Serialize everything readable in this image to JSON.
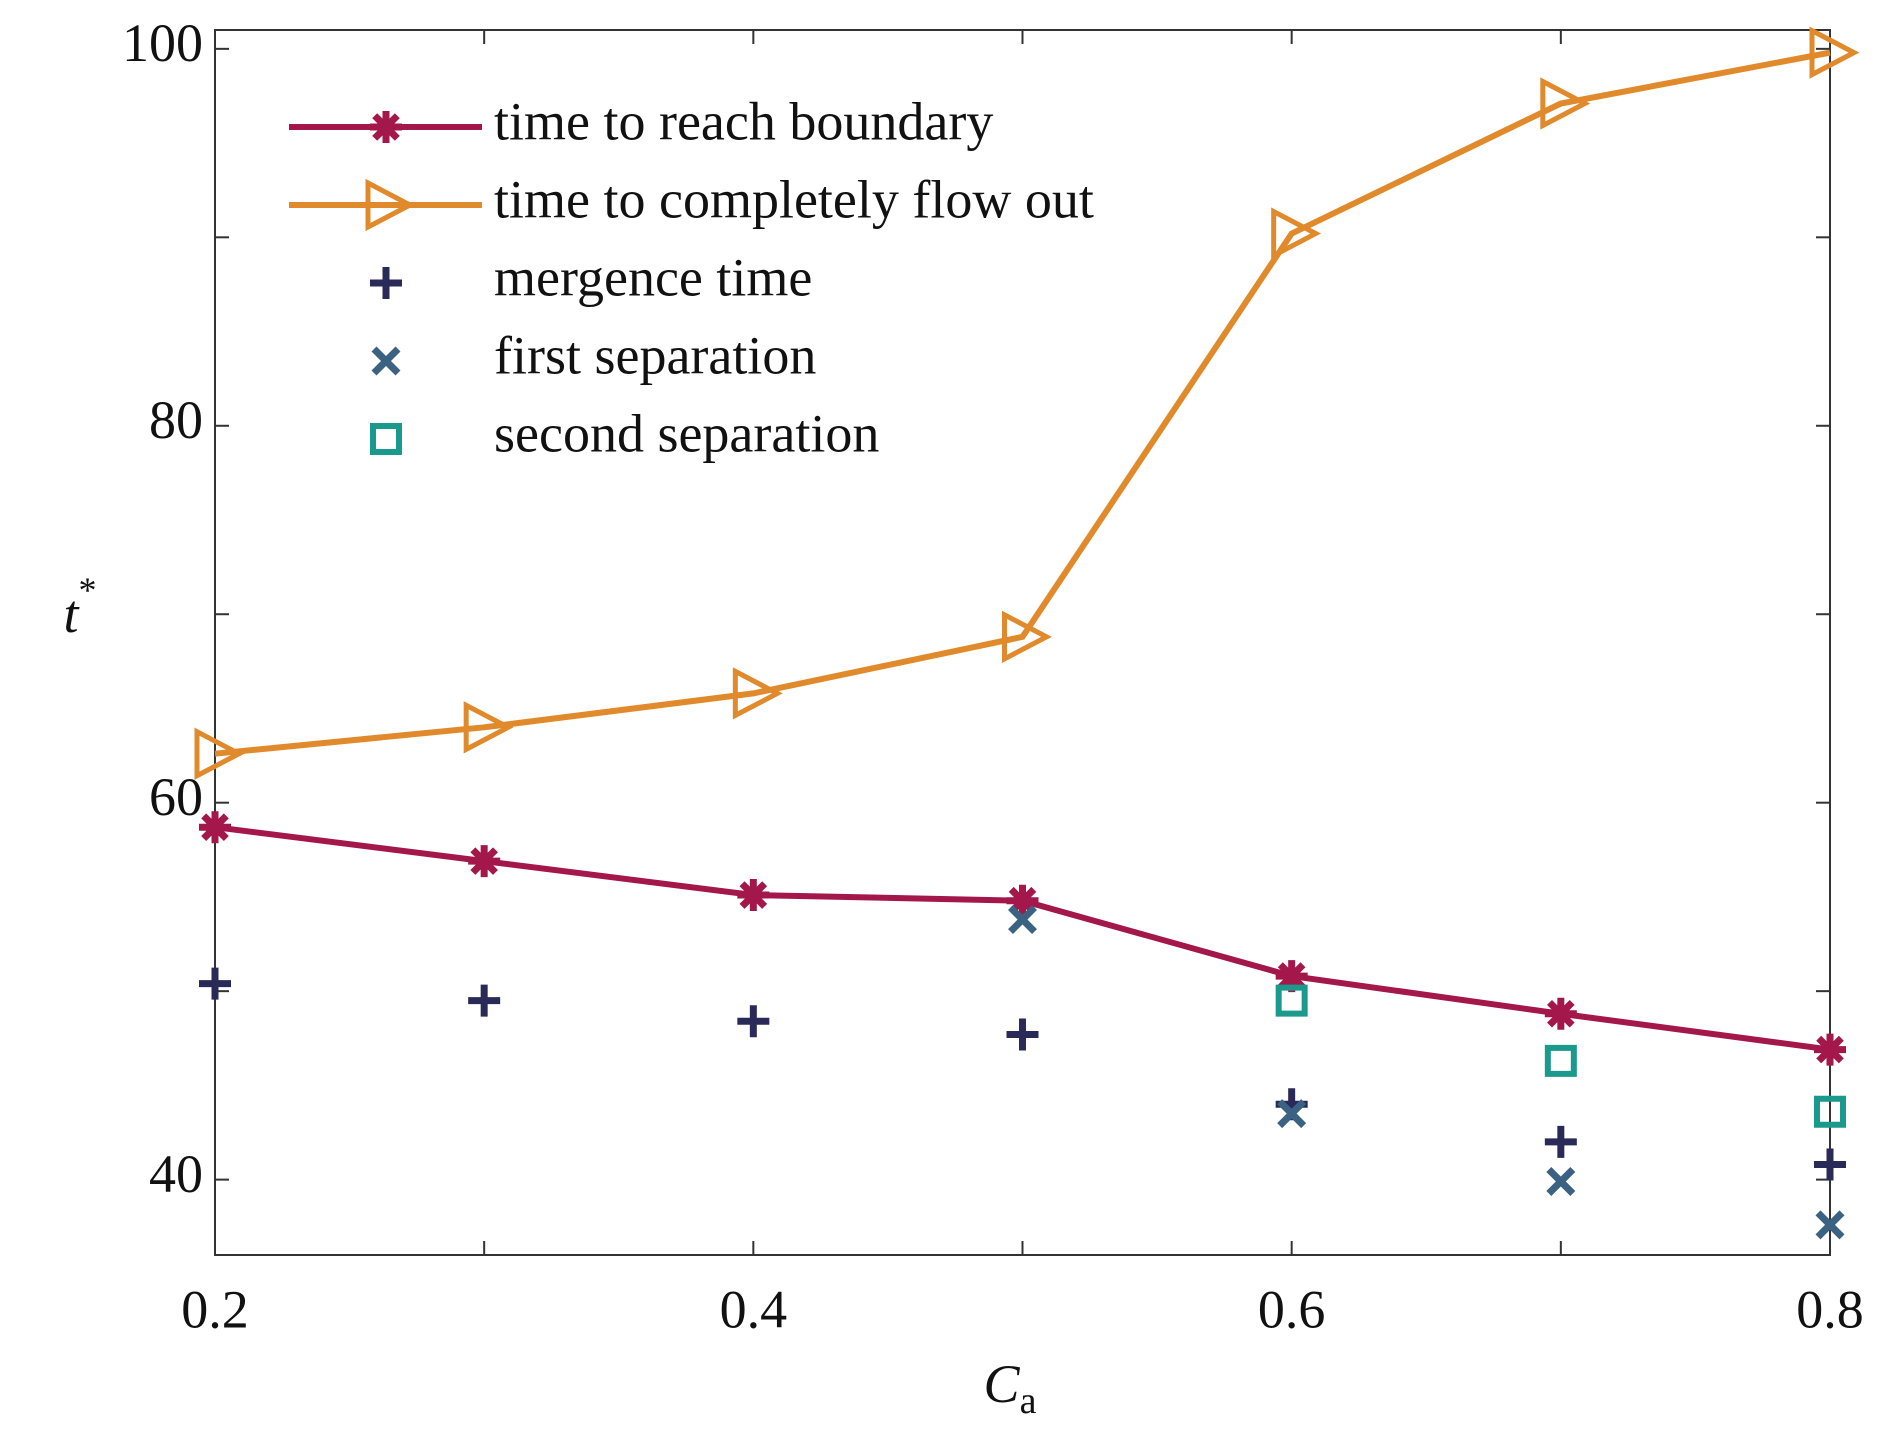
{
  "chart_data": {
    "type": "line",
    "xlabel": "C",
    "xlabel_subscript": "a",
    "ylabel": "t",
    "ylabel_superscript": "*",
    "x": [
      0.2,
      0.3,
      0.4,
      0.5,
      0.6,
      0.7,
      0.8
    ],
    "xlim": [
      0.2,
      0.8
    ],
    "xticks": [
      0.2,
      0.4,
      0.6,
      0.8
    ],
    "xminorticks": [
      0.3,
      0.5,
      0.7
    ],
    "ylim": [
      36,
      101
    ],
    "yticks": [
      40,
      60,
      80,
      100
    ],
    "yminorticks": [
      50,
      70,
      90
    ],
    "grid": false,
    "legend": "upper left",
    "series": [
      {
        "name": "time to reach boundary",
        "color": "#a3174b",
        "marker": "asterisk",
        "line": true,
        "values": [
          58.7,
          56.9,
          55.1,
          54.8,
          50.8,
          48.8,
          46.9
        ]
      },
      {
        "name": "time to completely flow out",
        "color": "#e08a2c",
        "marker": "triangle-right",
        "line": true,
        "values": [
          62.6,
          64.0,
          65.8,
          68.8,
          90.2,
          97.1,
          99.8
        ]
      },
      {
        "name": "mergence time",
        "color": "#2a2a58",
        "marker": "plus",
        "line": false,
        "values": [
          50.4,
          49.5,
          48.4,
          47.7,
          44.0,
          42.0,
          40.8
        ]
      },
      {
        "name": "first separation",
        "color": "#3b6282",
        "marker": "x",
        "line": false,
        "values": [
          null,
          null,
          null,
          53.8,
          43.5,
          39.9,
          37.6
        ]
      },
      {
        "name": "second separation",
        "color": "#1a9a8c",
        "marker": "square",
        "line": false,
        "values": [
          null,
          null,
          null,
          null,
          49.5,
          46.3,
          43.6
        ]
      }
    ]
  }
}
